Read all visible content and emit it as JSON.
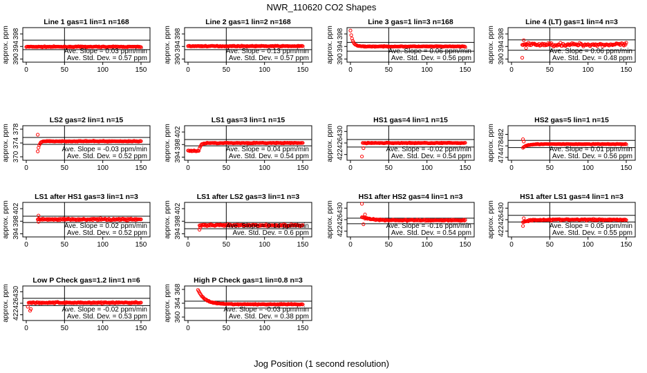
{
  "figure": {
    "title": "NWR_110620  CO2 Shapes",
    "xlabel": "Jog Position (1 second resolution)",
    "ylabel": "approx. ppm",
    "slope_prefix": "Ave. Slope =",
    "slope_unit": "ppm/min",
    "std_prefix": "Ave. Std. Dev. =",
    "std_unit": "ppm",
    "marker_color": "#ff0000",
    "line_color": "#000000"
  },
  "chart_data": [
    {
      "type": "scatter",
      "title": "Line 1 gas=1 lin=1 n=168",
      "xlim": [
        0,
        150
      ],
      "xticks": [
        0,
        50,
        100,
        150
      ],
      "ylim": [
        389,
        400
      ],
      "yticks": [
        390,
        394,
        398
      ],
      "hlines": [
        393,
        396
      ],
      "vline": 50,
      "slope": "0.03",
      "std": "0.57",
      "x0": 0,
      "shape": {
        "type": "flat",
        "base": 393.9,
        "noise": 0.12
      }
    },
    {
      "type": "scatter",
      "title": "Line 2 gas=1 lin=2 n=168",
      "xlim": [
        0,
        150
      ],
      "xticks": [
        0,
        50,
        100,
        150
      ],
      "ylim": [
        389,
        400
      ],
      "yticks": [
        390,
        394,
        398
      ],
      "hlines": [
        393,
        396
      ],
      "vline": 50,
      "slope": "0.13",
      "std": "0.57",
      "x0": 0,
      "shape": {
        "type": "flat",
        "base": 394.1,
        "noise": 0.12
      }
    },
    {
      "type": "scatter",
      "title": "Line 3 gas=1 lin=3 n=168",
      "xlim": [
        0,
        150
      ],
      "xticks": [
        0,
        50,
        100,
        150
      ],
      "ylim": [
        389,
        400
      ],
      "yticks": [
        390,
        394,
        398
      ],
      "hlines": [
        392.5,
        395.3
      ],
      "vline": 50,
      "slope": "0.06",
      "std": "0.56",
      "x0": 0,
      "shape": {
        "type": "decay",
        "base": 394.0,
        "a0": 5,
        "tau": 3,
        "noise": 0.1
      }
    },
    {
      "type": "scatter",
      "title": "Line 4 (LT) gas=1 lin=4 n=3",
      "xlim": [
        0,
        150
      ],
      "xticks": [
        0,
        50,
        100,
        150
      ],
      "ylim": [
        389,
        400
      ],
      "yticks": [
        390,
        394,
        398
      ],
      "hlines": [
        392.8,
        396.1
      ],
      "vline": 50,
      "slope": "0.06",
      "std": "0.48",
      "x0": 14,
      "shape": {
        "type": "noisy",
        "base": 394.6,
        "noise": 0.5
      },
      "outliers": [
        [
          14,
          390.4
        ],
        [
          16,
          396
        ],
        [
          19,
          393.5
        ]
      ]
    },
    {
      "type": "scatter",
      "title": "LS2 gas=2 lin=1 n=15",
      "xlim": [
        0,
        150
      ],
      "xticks": [
        0,
        50,
        100,
        150
      ],
      "ylim": [
        369,
        379
      ],
      "yticks": [
        370,
        374,
        378
      ],
      "hlines": [
        373.6,
        375.6
      ],
      "vline": 50,
      "slope": "-0.03",
      "std": "0.52",
      "x0": 15,
      "shape": {
        "type": "dip",
        "base": 374.5,
        "amp": -3,
        "tau": 2,
        "noise": 0.1
      },
      "outliers": [
        [
          15,
          376.4
        ]
      ]
    },
    {
      "type": "scatter",
      "title": "LS1 gas=3 lin=1 n=15",
      "xlim": [
        0,
        150
      ],
      "xticks": [
        0,
        50,
        100,
        150
      ],
      "ylim": [
        393,
        404
      ],
      "yticks": [
        394,
        398,
        402
      ],
      "hlines": [
        397.6,
        399.6
      ],
      "vline": 50,
      "slope": "0.04",
      "std": "0.54",
      "x0": 0,
      "shape": {
        "type": "rise",
        "base": 398.5,
        "low": 396.0,
        "t0": 14,
        "tau": 2.5,
        "noise": 0.12
      }
    },
    {
      "type": "scatter",
      "title": "HS1 gas=4 lin=1 n=15",
      "xlim": [
        0,
        150
      ],
      "xticks": [
        0,
        50,
        100,
        150
      ],
      "ylim": [
        420,
        432
      ],
      "yticks": [
        422,
        426,
        430
      ],
      "hlines": [
        424.6,
        427.2
      ],
      "vline": 50,
      "slope": "-0.02",
      "std": "0.54",
      "x0": 16,
      "shape": {
        "type": "flat",
        "base": 426.0,
        "noise": 0.12
      },
      "outliers": [
        [
          15,
          421.3
        ],
        [
          17,
          424.2
        ]
      ]
    },
    {
      "type": "scatter",
      "title": "HS2 gas=5 lin=1 n=15",
      "xlim": [
        0,
        150
      ],
      "xticks": [
        0,
        50,
        100,
        150
      ],
      "ylim": [
        473,
        485
      ],
      "yticks": [
        474,
        478,
        482
      ],
      "hlines": [
        477.4,
        479.9
      ],
      "vline": 50,
      "slope": "0.01",
      "std": "0.56",
      "x0": 15,
      "shape": {
        "type": "dip",
        "base": 478.6,
        "amp": -1.2,
        "tau": 5,
        "noise": 0.1
      },
      "outliers": [
        [
          15,
          480.3
        ],
        [
          16,
          479.5
        ]
      ]
    },
    {
      "type": "scatter",
      "title": "LS1 after HS1 gas=3 lin=1 n=3",
      "xlim": [
        0,
        150
      ],
      "xticks": [
        0,
        50,
        100,
        150
      ],
      "ylim": [
        393,
        404
      ],
      "yticks": [
        394,
        398,
        402
      ],
      "hlines": [
        397.6,
        399.6
      ],
      "vline": 50,
      "slope": "0.02",
      "std": "0.52",
      "x0": 15,
      "shape": {
        "type": "noisy",
        "base": 398.6,
        "noise": 0.25
      },
      "outliers": [
        [
          16,
          399.8
        ],
        [
          16,
          397.8
        ]
      ]
    },
    {
      "type": "scatter",
      "title": "LS1 after LS2 gas=3 lin=1 n=3",
      "xlim": [
        0,
        150
      ],
      "xticks": [
        0,
        50,
        100,
        150
      ],
      "ylim": [
        393,
        404
      ],
      "yticks": [
        394,
        398,
        402
      ],
      "hlines": [
        395.6,
        397.6
      ],
      "vline": 50,
      "slope": "0.14",
      "std": "0.6",
      "x0": 15,
      "shape": {
        "type": "noisy",
        "base": 396.7,
        "noise": 0.28
      },
      "outliers": [
        [
          16,
          396.0
        ],
        [
          15,
          395.3
        ]
      ]
    },
    {
      "type": "scatter",
      "title": "HS1 after HS2 gas=4 lin=1 n=3",
      "xlim": [
        0,
        150
      ],
      "xticks": [
        0,
        50,
        100,
        150
      ],
      "ylim": [
        420,
        432
      ],
      "yticks": [
        422,
        426,
        430
      ],
      "hlines": [
        424.6,
        426.5
      ],
      "vline": 50,
      "slope": "-0.16",
      "std": "0.54",
      "x0": 15,
      "shape": {
        "type": "decay",
        "base": 425.8,
        "a0": 1.2,
        "tau": 10,
        "noise": 0.22
      },
      "outliers": [
        [
          15,
          431.5
        ],
        [
          17,
          424.4
        ],
        [
          19,
          427.8
        ]
      ]
    },
    {
      "type": "scatter",
      "title": "HS1 after LS1 gas=4 lin=1 n=3",
      "xlim": [
        0,
        150
      ],
      "xticks": [
        0,
        50,
        100,
        150
      ],
      "ylim": [
        420,
        432
      ],
      "yticks": [
        422,
        426,
        430
      ],
      "hlines": [
        425.2,
        427.5
      ],
      "vline": 50,
      "slope": "0.05",
      "std": "0.55",
      "x0": 15,
      "shape": {
        "type": "dip",
        "base": 426.0,
        "amp": -0.8,
        "tau": 8,
        "noise": 0.22
      },
      "outliers": [
        [
          15,
          423.8
        ],
        [
          16,
          426.5
        ]
      ]
    },
    {
      "type": "scatter",
      "title": "Low P Check gas=1.2 lin=1 n=6",
      "xlim": [
        0,
        150
      ],
      "xticks": [
        0,
        50,
        100,
        150
      ],
      "ylim": [
        420,
        432
      ],
      "yticks": [
        422,
        426,
        430
      ],
      "hlines": [
        425.2,
        427.7
      ],
      "vline": 50,
      "slope": "-0.02",
      "std": "0.53",
      "x0": 3,
      "shape": {
        "type": "noisy",
        "base": 426.2,
        "noise": 0.22
      },
      "outliers": [
        [
          2,
          424.8
        ],
        [
          5,
          423.4
        ],
        [
          6,
          424.0
        ]
      ]
    },
    {
      "type": "scatter",
      "title": "High P Check gas=1 lin=0.8 n=3",
      "xlim": [
        0,
        150
      ],
      "xticks": [
        0,
        50,
        100,
        150
      ],
      "ylim": [
        359,
        369
      ],
      "yticks": [
        360,
        364,
        368
      ],
      "hlines": [
        362.6,
        364.6
      ],
      "vline": 50,
      "slope": "-0.03",
      "std": "0.38",
      "x0": 13,
      "shape": {
        "type": "decay",
        "base": 363.7,
        "a0": 4.2,
        "tau": 9,
        "noise": 0.1
      }
    }
  ]
}
